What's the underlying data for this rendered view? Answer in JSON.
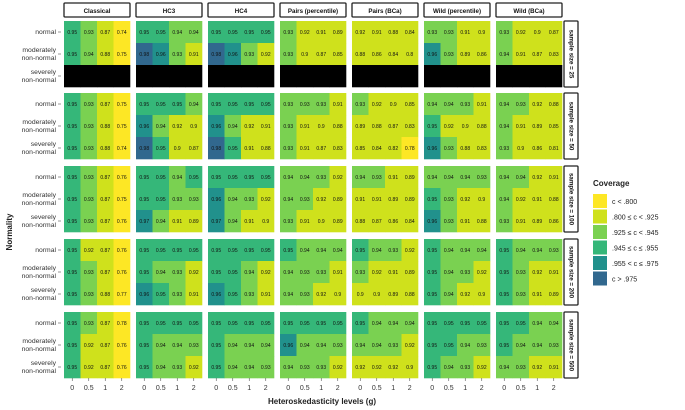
{
  "chart_data": {
    "type": "heatmap",
    "xlabel": "Heteroskedasticity levels (g)",
    "ylabel": "Normality",
    "x": [
      "0",
      "0.5",
      "1",
      "2"
    ],
    "y": [
      "normal",
      "moderately non-normal",
      "severely non-normal"
    ],
    "methods": [
      "Classical",
      "HC3",
      "HC4",
      "Pairs (percentile)",
      "Pairs (BCa)",
      "Wild (percentile)",
      "Wild (BCa)"
    ],
    "sample_sizes": [
      "sample size = 25",
      "sample size = 50",
      "sample size = 100",
      "sample size = 200",
      "sample size = 500"
    ],
    "legend": {
      "title": "Coverage",
      "placement": "right",
      "bins": [
        {
          "label": "c < .800",
          "color": "#fde725"
        },
        {
          "label": ".800 ≤ c < .925",
          "color": "#cfe11c"
        },
        {
          "label": ".925 ≤ c < .945",
          "color": "#7ad151"
        },
        {
          "label": ".945 ≤ c ≤ .955",
          "color": "#35b779"
        },
        {
          "label": ".955 < c ≤ .975",
          "color": "#21918c"
        },
        {
          "label": "c > .975",
          "color": "#31688e"
        }
      ],
      "missing_color": "#000000"
    },
    "values": [
      [
        [
          [
            "0.95",
            "0.93",
            "0.87",
            "0.74"
          ],
          [
            "0.95",
            "0.94",
            "0.88",
            "0.75"
          ],
          [
            "",
            "",
            "",
            ""
          ]
        ],
        [
          [
            "0.95",
            "0.95",
            "0.94",
            "0.94"
          ],
          [
            "0.98",
            "0.96",
            "0.93",
            "0.91"
          ],
          [
            "",
            "",
            "",
            ""
          ]
        ],
        [
          [
            "0.95",
            "0.95",
            "0.95",
            "0.95"
          ],
          [
            "0.98",
            "0.96",
            "0.93",
            "0.92"
          ],
          [
            "",
            "",
            "",
            ""
          ]
        ],
        [
          [
            "0.93",
            "0.92",
            "0.91",
            "0.89"
          ],
          [
            "0.93",
            "0.9",
            "0.87",
            "0.85"
          ],
          [
            "",
            "",
            "",
            ""
          ]
        ],
        [
          [
            "0.92",
            "0.91",
            "0.88",
            "0.84"
          ],
          [
            "0.88",
            "0.86",
            "0.84",
            "0.8"
          ],
          [
            "",
            "",
            "",
            ""
          ]
        ],
        [
          [
            "0.93",
            "0.93",
            "0.91",
            "0.9"
          ],
          [
            "0.96",
            "0.93",
            "0.89",
            "0.86"
          ],
          [
            "",
            "",
            "",
            ""
          ]
        ],
        [
          [
            "0.93",
            "0.92",
            "0.9",
            "0.87"
          ],
          [
            "0.94",
            "0.91",
            "0.87",
            "0.83"
          ],
          [
            "",
            "",
            "",
            ""
          ]
        ]
      ],
      [
        [
          [
            "0.95",
            "0.93",
            "0.87",
            "0.75"
          ],
          [
            "0.95",
            "0.93",
            "0.88",
            "0.75"
          ],
          [
            "0.95",
            "0.93",
            "0.88",
            "0.74"
          ]
        ],
        [
          [
            "0.95",
            "0.95",
            "0.95",
            "0.94"
          ],
          [
            "0.96",
            "0.94",
            "0.92",
            "0.9"
          ],
          [
            "0.98",
            "0.95",
            "0.9",
            "0.87"
          ]
        ],
        [
          [
            "0.95",
            "0.95",
            "0.95",
            "0.95"
          ],
          [
            "0.96",
            "0.94",
            "0.92",
            "0.91"
          ],
          [
            "0.98",
            "0.95",
            "0.91",
            "0.88"
          ]
        ],
        [
          [
            "0.93",
            "0.93",
            "0.93",
            "0.91"
          ],
          [
            "0.93",
            "0.91",
            "0.9",
            "0.88"
          ],
          [
            "0.93",
            "0.91",
            "0.87",
            "0.83"
          ]
        ],
        [
          [
            "0.93",
            "0.92",
            "0.9",
            "0.85"
          ],
          [
            "0.89",
            "0.88",
            "0.87",
            "0.83"
          ],
          [
            "0.85",
            "0.84",
            "0.82",
            "0.78"
          ]
        ],
        [
          [
            "0.94",
            "0.94",
            "0.93",
            "0.91"
          ],
          [
            "0.95",
            "0.92",
            "0.9",
            "0.88"
          ],
          [
            "0.96",
            "0.93",
            "0.88",
            "0.83"
          ]
        ],
        [
          [
            "0.94",
            "0.93",
            "0.92",
            "0.88"
          ],
          [
            "0.94",
            "0.91",
            "0.89",
            "0.85"
          ],
          [
            "0.93",
            "0.9",
            "0.86",
            "0.81"
          ]
        ]
      ],
      [
        [
          [
            "0.95",
            "0.93",
            "0.87",
            "0.76"
          ],
          [
            "0.95",
            "0.93",
            "0.87",
            "0.75"
          ],
          [
            "0.95",
            "0.93",
            "0.87",
            "0.76"
          ]
        ],
        [
          [
            "0.95",
            "0.95",
            "0.94",
            "0.95"
          ],
          [
            "0.95",
            "0.95",
            "0.93",
            "0.93"
          ],
          [
            "0.97",
            "0.94",
            "0.91",
            "0.89"
          ]
        ],
        [
          [
            "0.95",
            "0.95",
            "0.95",
            "0.95"
          ],
          [
            "0.96",
            "0.94",
            "0.93",
            "0.92"
          ],
          [
            "0.97",
            "0.94",
            "0.91",
            "0.9"
          ]
        ],
        [
          [
            "0.94",
            "0.94",
            "0.93",
            "0.92"
          ],
          [
            "0.94",
            "0.93",
            "0.92",
            "0.89"
          ],
          [
            "0.93",
            "0.91",
            "0.9",
            "0.89"
          ]
        ],
        [
          [
            "0.94",
            "0.93",
            "0.91",
            "0.89"
          ],
          [
            "0.91",
            "0.91",
            "0.89",
            "0.89"
          ],
          [
            "0.88",
            "0.87",
            "0.86",
            "0.84"
          ]
        ],
        [
          [
            "0.94",
            "0.94",
            "0.94",
            "0.93"
          ],
          [
            "0.95",
            "0.93",
            "0.92",
            "0.9"
          ],
          [
            "0.96",
            "0.93",
            "0.91",
            "0.88"
          ]
        ],
        [
          [
            "0.94",
            "0.94",
            "0.92",
            "0.91"
          ],
          [
            "0.94",
            "0.92",
            "0.91",
            "0.88"
          ],
          [
            "0.93",
            "0.91",
            "0.89",
            "0.86"
          ]
        ]
      ],
      [
        [
          [
            "0.95",
            "0.92",
            "0.87",
            "0.76"
          ],
          [
            "0.95",
            "0.93",
            "0.87",
            "0.76"
          ],
          [
            "0.95",
            "0.93",
            "0.88",
            "0.77"
          ]
        ],
        [
          [
            "0.95",
            "0.95",
            "0.95",
            "0.95"
          ],
          [
            "0.95",
            "0.94",
            "0.93",
            "0.92"
          ],
          [
            "0.96",
            "0.95",
            "0.93",
            "0.91"
          ]
        ],
        [
          [
            "0.95",
            "0.95",
            "0.95",
            "0.95"
          ],
          [
            "0.95",
            "0.95",
            "0.94",
            "0.92"
          ],
          [
            "0.96",
            "0.95",
            "0.93",
            "0.91"
          ]
        ],
        [
          [
            "0.95",
            "0.94",
            "0.94",
            "0.94"
          ],
          [
            "0.94",
            "0.93",
            "0.93",
            "0.91"
          ],
          [
            "0.94",
            "0.93",
            "0.92",
            "0.9"
          ]
        ],
        [
          [
            "0.95",
            "0.94",
            "0.93",
            "0.92"
          ],
          [
            "0.93",
            "0.92",
            "0.91",
            "0.89"
          ],
          [
            "0.9",
            "0.9",
            "0.89",
            "0.88"
          ]
        ],
        [
          [
            "0.95",
            "0.94",
            "0.94",
            "0.94"
          ],
          [
            "0.95",
            "0.94",
            "0.93",
            "0.92"
          ],
          [
            "0.95",
            "0.94",
            "0.92",
            "0.9"
          ]
        ],
        [
          [
            "0.95",
            "0.94",
            "0.94",
            "0.93"
          ],
          [
            "0.95",
            "0.93",
            "0.92",
            "0.91"
          ],
          [
            "0.95",
            "0.93",
            "0.91",
            "0.89"
          ]
        ]
      ],
      [
        [
          [
            "0.95",
            "0.93",
            "0.87",
            "0.78"
          ],
          [
            "0.95",
            "0.92",
            "0.87",
            "0.76"
          ],
          [
            "0.95",
            "0.92",
            "0.87",
            "0.76"
          ]
        ],
        [
          [
            "0.95",
            "0.95",
            "0.95",
            "0.95"
          ],
          [
            "0.95",
            "0.94",
            "0.94",
            "0.93"
          ],
          [
            "0.95",
            "0.94",
            "0.93",
            "0.92"
          ]
        ],
        [
          [
            "0.95",
            "0.95",
            "0.95",
            "0.95"
          ],
          [
            "0.95",
            "0.94",
            "0.94",
            "0.94"
          ],
          [
            "0.95",
            "0.94",
            "0.94",
            "0.93"
          ]
        ],
        [
          [
            "0.95",
            "0.95",
            "0.95",
            "0.95"
          ],
          [
            "0.96",
            "0.94",
            "0.94",
            "0.93"
          ],
          [
            "0.94",
            "0.93",
            "0.93",
            "0.92"
          ]
        ],
        [
          [
            "0.95",
            "0.94",
            "0.94",
            "0.94"
          ],
          [
            "0.94",
            "0.94",
            "0.93",
            "0.92"
          ],
          [
            "0.92",
            "0.92",
            "0.92",
            "0.9"
          ]
        ],
        [
          [
            "0.95",
            "0.95",
            "0.95",
            "0.95"
          ],
          [
            "0.95",
            "0.95",
            "0.94",
            "0.93"
          ],
          [
            "0.95",
            "0.94",
            "0.93",
            "0.92"
          ]
        ],
        [
          [
            "0.95",
            "0.95",
            "0.94",
            "0.94"
          ],
          [
            "0.95",
            "0.94",
            "0.94",
            "0.93"
          ],
          [
            "0.94",
            "0.93",
            "0.92",
            "0.91"
          ]
        ]
      ]
    ]
  }
}
